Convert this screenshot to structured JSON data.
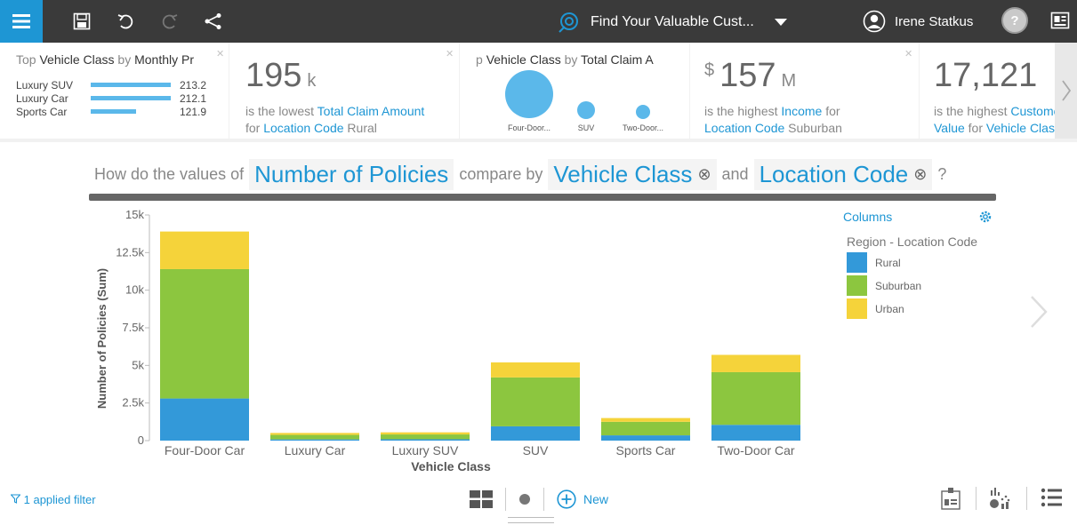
{
  "topbar": {
    "title": "Find Your Valuable Cust...",
    "user_name": "Irene Statkus",
    "help_label": "?"
  },
  "cards": {
    "card1": {
      "title_pre": "Top ",
      "title_dim": "Vehicle Class",
      "title_mid": " by ",
      "title_measure": "Monthly Pr",
      "rows": [
        {
          "label": "Luxury SUV",
          "value": "213.2",
          "fraction": 1.0
        },
        {
          "label": "Luxury Car",
          "value": "212.1",
          "fraction": 0.995
        },
        {
          "label": "Sports Car",
          "value": "121.9",
          "fraction": 0.572
        }
      ]
    },
    "card2": {
      "number": "195",
      "unit": "k",
      "line1_pre": "is the lowest ",
      "line1_hl": "Total Claim Amount",
      "line2_pre": "for ",
      "line2_hl": "Location Code",
      "line2_post": " Rural"
    },
    "card3": {
      "title_pre": "p ",
      "title_dim": "Vehicle Class",
      "title_mid": " by ",
      "title_measure": "Total Claim A",
      "bubbles": [
        {
          "label": "Four-Door..."
        },
        {
          "label": "SUV"
        },
        {
          "label": "Two-Door..."
        }
      ]
    },
    "card4": {
      "currency": "$",
      "number": "157",
      "unit": "M",
      "line1_pre": "is the highest ",
      "line1_hl": "Income",
      "line1_post": " for",
      "line2_hl": "Location Code",
      "line2_post": " Suburban"
    },
    "card5": {
      "number": "17,121",
      "line1_pre": "is the highest ",
      "line1_hl": "Customer",
      "line2_hl": "Value",
      "line2_mid": " for ",
      "line2_hl2": "Vehicle Class"
    }
  },
  "question": {
    "part1": "How do the values of",
    "measure": "Number of Policies",
    "part2": "compare by",
    "dim1": "Vehicle Class",
    "part3": "and",
    "dim2": "Location Code",
    "end": "?"
  },
  "legend": {
    "title": "Columns",
    "subtitle": "Region - Location Code"
  },
  "footer": {
    "filter_label": "1 applied filter",
    "new_label": "New"
  },
  "chart_data": {
    "type": "bar",
    "stacked": true,
    "categories": [
      "Four-Door Car",
      "Luxury Car",
      "Luxury SUV",
      "SUV",
      "Sports Car",
      "Two-Door Car"
    ],
    "series": [
      {
        "name": "Rural",
        "color": "#3399d9",
        "values": [
          2800,
          80,
          90,
          950,
          350,
          1050
        ]
      },
      {
        "name": "Suburban",
        "color": "#8cc63f",
        "values": [
          8600,
          300,
          320,
          3250,
          900,
          3500
        ]
      },
      {
        "name": "Urban",
        "color": "#f5d33a",
        "values": [
          2500,
          130,
          140,
          1000,
          250,
          1150
        ]
      }
    ],
    "xlabel": "Vehicle Class",
    "ylabel": "Number of Policies (Sum)",
    "ylim": [
      0,
      15000
    ],
    "yticks": [
      0,
      2500,
      5000,
      7500,
      10000,
      12500,
      15000
    ],
    "ytick_labels": [
      "0",
      "2.5k",
      "5k",
      "7.5k",
      "10k",
      "12.5k",
      "15k"
    ],
    "grid": false,
    "legend_position": "right"
  }
}
